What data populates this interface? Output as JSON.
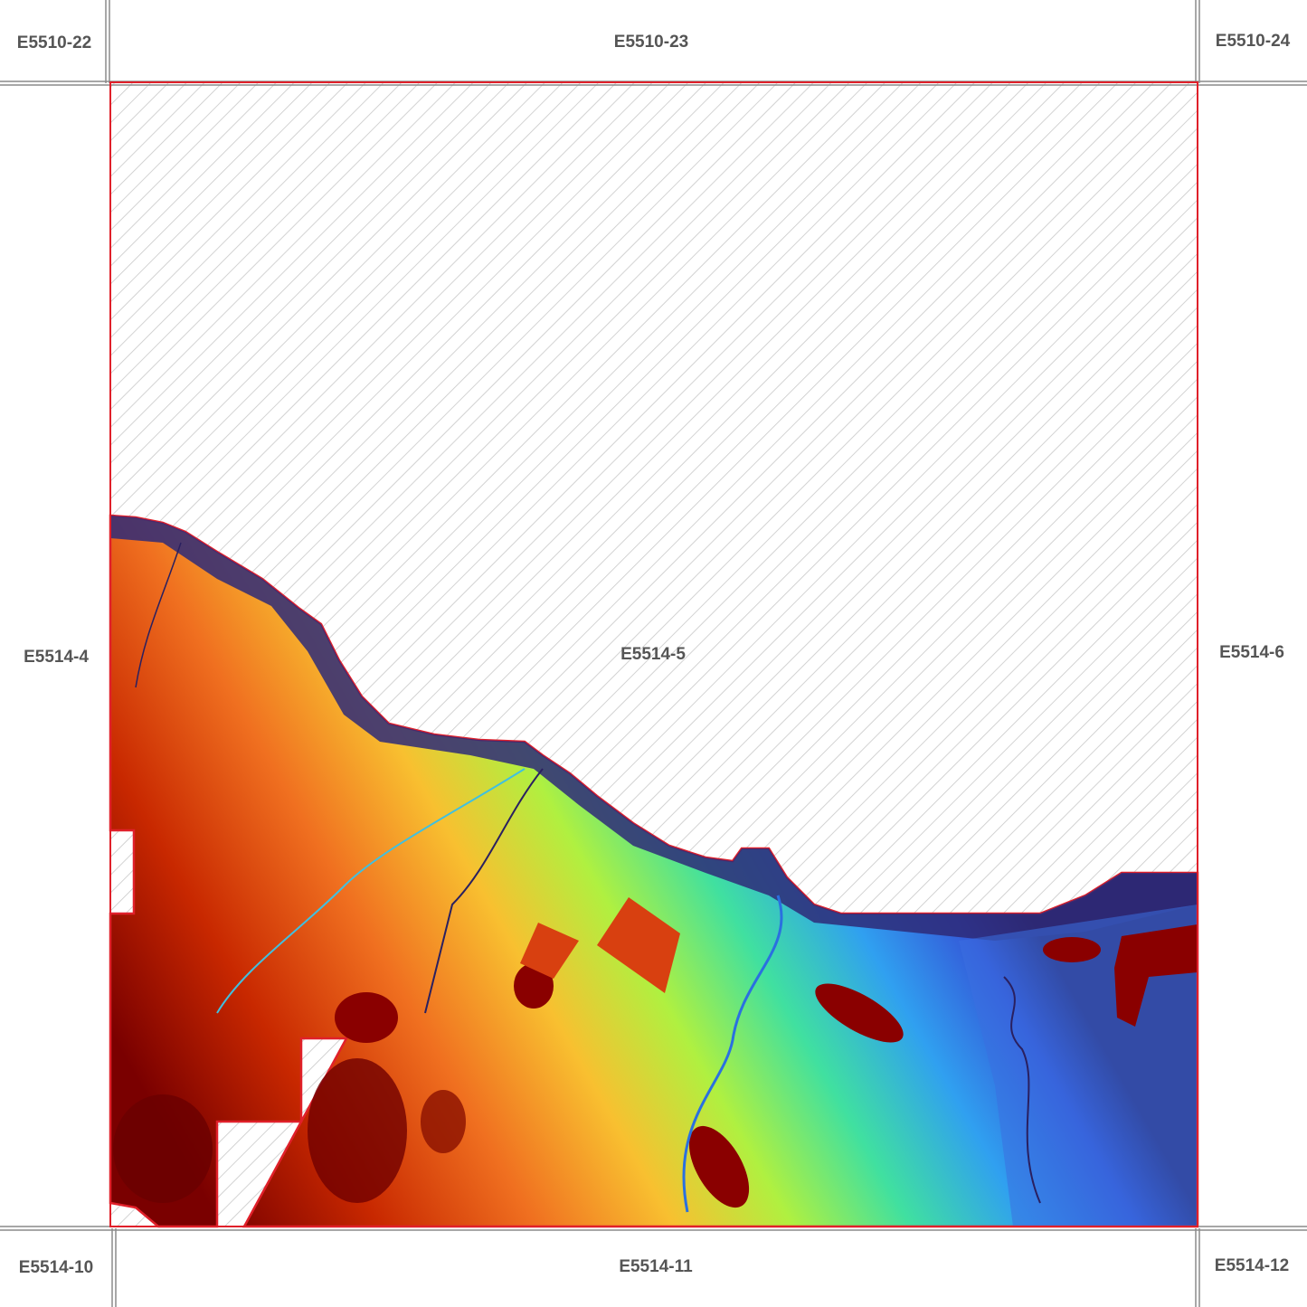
{
  "tiles": {
    "top_left": "E5510-22",
    "top_center": "E5510-23",
    "top_right": "E5510-24",
    "mid_left": "E5514-4",
    "center": "E5514-5",
    "mid_right": "E5514-6",
    "bottom_left": "E5514-10",
    "bottom_center": "E5514-11",
    "bottom_right": "E5514-12"
  },
  "colors": {
    "tile_border": "#8a8a8a",
    "coverage_outline": "#e0202a",
    "no_data_hatch": "#c8c8c8",
    "elevation_ramp": [
      "#7a0000",
      "#c82800",
      "#f07020",
      "#f8c030",
      "#b0f040",
      "#40e0a0",
      "#30a0f0",
      "#3458d8",
      "#2a2060"
    ]
  },
  "legend_semantics": {
    "hatched_area": "no-data",
    "color_ramp": "elevation low (blue) to high (red)"
  }
}
